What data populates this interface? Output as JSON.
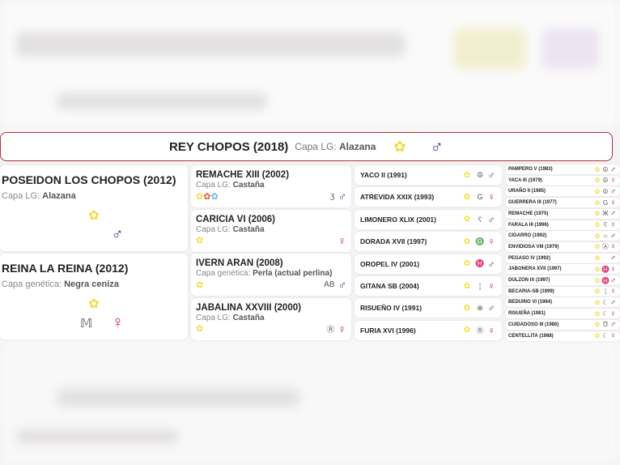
{
  "subject": {
    "name": "REY CHOPOS (2018)",
    "coat_label": "Capa LG:",
    "coat": "Alazana",
    "sex": "male"
  },
  "colors": {
    "male": "#5b2b8c",
    "female": "#c2185b",
    "medal": "#f3dc3a",
    "border": "#b0303d"
  },
  "gen1": [
    {
      "name": "POSEIDON LOS CHOPOS (2012)",
      "coat_label": "Capa LG:",
      "coat": "Alazana",
      "sex": "♂",
      "brand": ""
    },
    {
      "name": "REINA LA REINA (2012)",
      "coat_label": "Capa genética:",
      "coat": "Negra ceniza",
      "sex": "♀",
      "brand": "𝕄"
    }
  ],
  "gen2": [
    {
      "name": "REMACHE XIII (2002)",
      "coat_label": "Capa LG:",
      "coat": "Castaña",
      "sex": "♂",
      "brand": "ʒ"
    },
    {
      "name": "CARICIA VI (2006)",
      "coat_label": "Capa LG:",
      "coat": "Castaña",
      "sex": "♀",
      "brand": ""
    },
    {
      "name": "IVERN ARAN (2008)",
      "coat_label": "Capa genética:",
      "coat": "Perla (actual perlina)",
      "sex": "♂",
      "brand": "AB"
    },
    {
      "name": "JABALINA XXVIII (2000)",
      "coat_label": "Capa LG:",
      "coat": "Castaña",
      "sex": "♀",
      "brand": "Ⓡ"
    }
  ],
  "gen3": [
    {
      "name": "YACO II (1991)",
      "sex": "♂",
      "brand": "☮"
    },
    {
      "name": "ATREVIDA XXIX (1993)",
      "sex": "♀",
      "brand": "G"
    },
    {
      "name": "LIMONERO XLIX (2001)",
      "sex": "♂",
      "brand": "ʕ"
    },
    {
      "name": "DORADA XVII (1997)",
      "sex": "♀",
      "brand": "♎"
    },
    {
      "name": "OROPEL IV (2001)",
      "sex": "♂",
      "brand": "♓"
    },
    {
      "name": "GITANA SB (2004)",
      "sex": "♀",
      "brand": "¦"
    },
    {
      "name": "RISUEÑO IV (1991)",
      "sex": "♂",
      "brand": "⊗"
    },
    {
      "name": "FURIA XVI (1996)",
      "sex": "♀",
      "brand": "Ⓡ"
    }
  ],
  "gen4": [
    {
      "name": "PAMPERO V (1983)",
      "sex": "♂",
      "brand": "☮"
    },
    {
      "name": "YACA III (1979)",
      "sex": "♀",
      "brand": "☮"
    },
    {
      "name": "URAÑO II (1985)",
      "sex": "♂",
      "brand": "☮"
    },
    {
      "name": "GUERRERA III (1977)",
      "sex": "♀",
      "brand": "G"
    },
    {
      "name": "REMACHE (1975)",
      "sex": "♂",
      "brand": "Ж"
    },
    {
      "name": "FARALA III (1996)",
      "sex": "♀",
      "brand": "ʕ"
    },
    {
      "name": "CIGARRO (1992)",
      "sex": "♂",
      "brand": "○"
    },
    {
      "name": "ENVIDIOSA VIII (1979)",
      "sex": "♀",
      "brand": "Ⓐ"
    },
    {
      "name": "PEGASO IV (1992)",
      "sex": "♂",
      "brand": ""
    },
    {
      "name": "JABONERA XVII (1997)",
      "sex": "♀",
      "brand": "♓"
    },
    {
      "name": "DULZON IX (1997)",
      "sex": "♂",
      "brand": "♓"
    },
    {
      "name": "BECARIA-SB (1999)",
      "sex": "♀",
      "brand": "¦"
    },
    {
      "name": "BEDUINO VI (1984)",
      "sex": "♂",
      "brand": "☾"
    },
    {
      "name": "RISUEÑA (1981)",
      "sex": "♀",
      "brand": "☾"
    },
    {
      "name": "CUIDADOSO III (1986)",
      "sex": "♂",
      "brand": "Ʊ"
    },
    {
      "name": "CENTELLITA (1988)",
      "sex": "♀",
      "brand": "☾"
    }
  ]
}
